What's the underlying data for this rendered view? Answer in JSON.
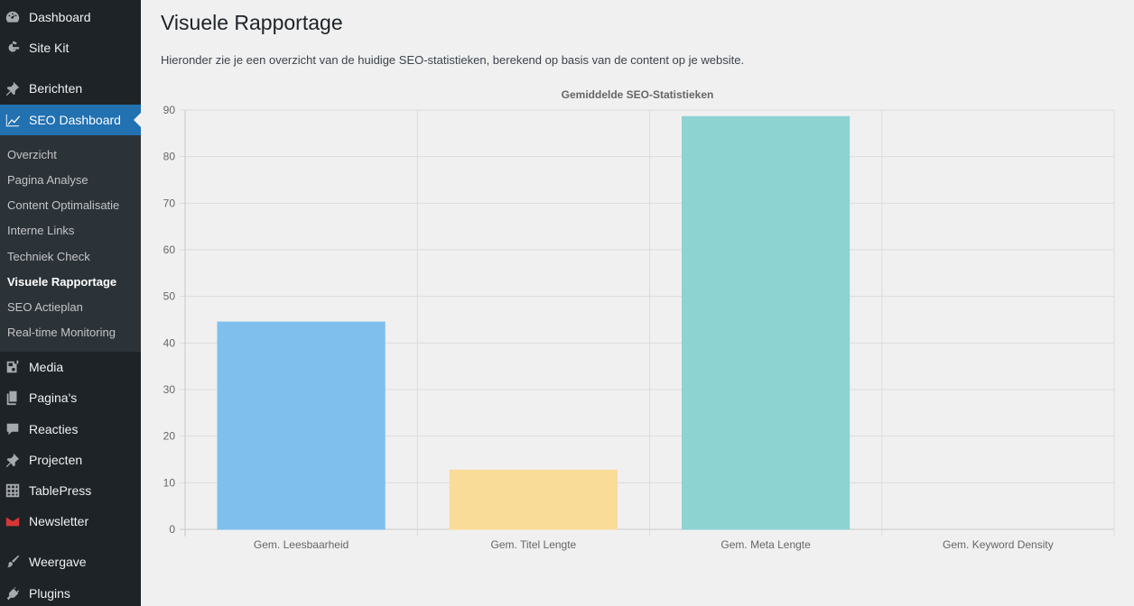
{
  "sidebar": {
    "items": [
      {
        "label": "Dashboard",
        "icon": "dashboard-icon"
      },
      {
        "label": "Site Kit",
        "icon": "google-g-icon"
      },
      {
        "label": "Berichten",
        "icon": "pushpin-icon"
      },
      {
        "label": "SEO Dashboard",
        "icon": "chart-line-icon"
      },
      {
        "label": "Media",
        "icon": "media-icon"
      },
      {
        "label": "Pagina's",
        "icon": "pages-icon"
      },
      {
        "label": "Reacties",
        "icon": "comment-icon"
      },
      {
        "label": "Projecten",
        "icon": "pushpin-icon"
      },
      {
        "label": "TablePress",
        "icon": "table-icon"
      },
      {
        "label": "Newsletter",
        "icon": "envelope-icon"
      },
      {
        "label": "Weergave",
        "icon": "paintbrush-icon"
      },
      {
        "label": "Plugins",
        "icon": "plug-icon"
      }
    ],
    "submenu": [
      "Overzicht",
      "Pagina Analyse",
      "Content Optimalisatie",
      "Interne Links",
      "Techniek Check",
      "Visuele Rapportage",
      "SEO Actieplan",
      "Real-time Monitoring"
    ],
    "current_submenu": "Visuele Rapportage"
  },
  "page": {
    "title": "Visuele Rapportage",
    "intro": "Hieronder zie je een overzicht van de huidige SEO-statistieken, berekend op basis van de content op je website."
  },
  "colors": {
    "sidebar_bg": "#1d2327",
    "active": "#2271b1",
    "bar_colors": [
      "#7fbfed",
      "#f9dc98",
      "#8dd3d2",
      "#cccccc"
    ]
  },
  "chart_data": {
    "type": "bar",
    "title": "Gemiddelde SEO-Statistieken",
    "categories": [
      "Gem. Leesbaarheid",
      "Gem. Titel Lengte",
      "Gem. Meta Lengte",
      "Gem. Keyword Density"
    ],
    "values": [
      44.5,
      12.7,
      88.6,
      0
    ],
    "ylim": [
      0,
      90
    ],
    "yticks": [
      0,
      10,
      20,
      30,
      40,
      50,
      60,
      70,
      80,
      90
    ],
    "grid": true,
    "legend": false,
    "xlabel": "",
    "ylabel": ""
  }
}
